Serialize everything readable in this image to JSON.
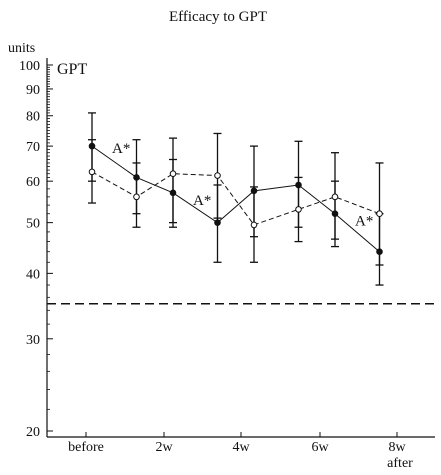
{
  "chart_data": {
    "type": "line",
    "title": "Efficacy to GPT",
    "yunit": "units",
    "panel_label": "GPT",
    "yscale": "log",
    "ylim": [
      20,
      105
    ],
    "yticks": [
      20,
      30,
      40,
      50,
      60,
      70,
      80,
      90,
      100
    ],
    "x_ticks": [
      {
        "label": "before",
        "sub": ""
      },
      {
        "label": "2w",
        "sub": ""
      },
      {
        "label": "4w",
        "sub": ""
      },
      {
        "label": "6w",
        "sub": ""
      },
      {
        "label": "8w",
        "sub": "after"
      }
    ],
    "reference_line": {
      "value": 35,
      "style": "dashed"
    },
    "series": [
      {
        "marker": "filled",
        "line": "solid",
        "points": [
          {
            "x": 0,
            "y": 70,
            "low": 60,
            "high": 81
          },
          {
            "x": 1,
            "y": 61,
            "low": 52,
            "high": 72
          },
          {
            "x": 2,
            "y": 57,
            "low": 49,
            "high": 66
          },
          {
            "x": 3,
            "y": 50,
            "low": 42,
            "high": 59
          },
          {
            "x": 4,
            "y": 57.5,
            "low": 47,
            "high": 70
          },
          {
            "x": 5,
            "y": 59,
            "low": 49,
            "high": 71.5
          },
          {
            "x": 6,
            "y": 52,
            "low": 45,
            "high": 60
          },
          {
            "x": 7,
            "y": 44,
            "low": 38,
            "high": 52
          }
        ]
      },
      {
        "marker": "open",
        "line": "dashed",
        "points": [
          {
            "x": 0,
            "y": 62.5,
            "low": 54.5,
            "high": 72
          },
          {
            "x": 1,
            "y": 56,
            "low": 49,
            "high": 65
          },
          {
            "x": 2,
            "y": 62,
            "low": 50,
            "high": 72.5
          },
          {
            "x": 3,
            "y": 61.5,
            "low": 51,
            "high": 74
          },
          {
            "x": 4,
            "y": 49.5,
            "low": 42,
            "high": 58.5
          },
          {
            "x": 5,
            "y": 53,
            "low": 46,
            "high": 61
          },
          {
            "x": 6,
            "y": 56,
            "low": 46.5,
            "high": 68
          },
          {
            "x": 7,
            "y": 52,
            "low": 41.5,
            "high": 65
          }
        ]
      }
    ],
    "annotations": [
      {
        "text": "A*",
        "near": {
          "series": 0,
          "x": 0
        }
      },
      {
        "text": "A*",
        "near": {
          "series": 0,
          "x": 2
        }
      },
      {
        "text": "A*",
        "near": {
          "series": 0,
          "x": 6
        }
      }
    ]
  }
}
